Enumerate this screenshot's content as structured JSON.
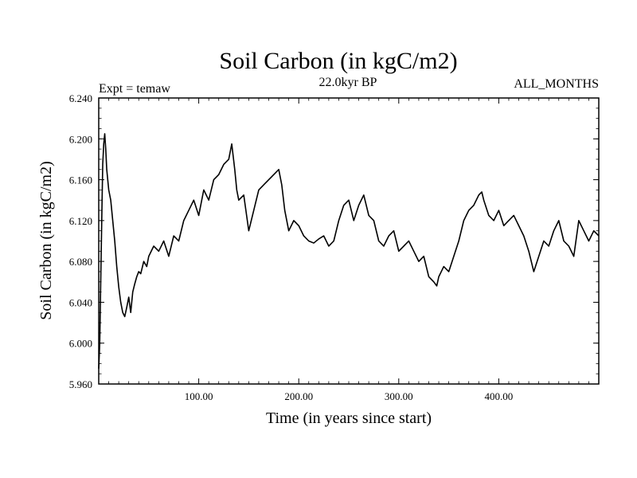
{
  "chart_data": {
    "type": "line",
    "title": "Soil Carbon (in kgC/m2)",
    "subtitle_left": "Expt = temaw",
    "subtitle_center": "22.0kyr BP",
    "subtitle_right": "ALL_MONTHS",
    "xlabel": "Time (in years since start)",
    "ylabel": "Soil Carbon (in kgC/m2)",
    "xlim": [
      0,
      500
    ],
    "ylim": [
      5.96,
      6.24
    ],
    "xticks": [
      100,
      200,
      300,
      400
    ],
    "xtick_labels": [
      "100.00",
      "200.00",
      "300.00",
      "400.00"
    ],
    "yticks": [
      5.96,
      6.0,
      6.04,
      6.08,
      6.12,
      6.16,
      6.2,
      6.24
    ],
    "ytick_labels": [
      "5.960",
      "6.000",
      "6.040",
      "6.080",
      "6.120",
      "6.160",
      "6.200",
      "6.240"
    ],
    "grid": false,
    "series": [
      {
        "name": "Soil Carbon",
        "color": "#000000",
        "x": [
          0,
          1,
          2,
          3,
          4,
          5,
          6,
          7,
          8,
          10,
          12,
          14,
          16,
          18,
          20,
          22,
          24,
          26,
          28,
          30,
          32,
          34,
          36,
          38,
          40,
          42,
          45,
          48,
          50,
          55,
          60,
          65,
          70,
          75,
          80,
          85,
          90,
          95,
          100,
          105,
          110,
          115,
          120,
          125,
          130,
          133,
          136,
          138,
          140,
          145,
          150,
          155,
          160,
          165,
          170,
          175,
          180,
          183,
          186,
          190,
          195,
          200,
          205,
          210,
          215,
          220,
          225,
          230,
          235,
          240,
          245,
          250,
          255,
          260,
          265,
          270,
          275,
          280,
          285,
          290,
          295,
          300,
          305,
          310,
          315,
          320,
          325,
          330,
          335,
          338,
          340,
          345,
          350,
          355,
          360,
          365,
          370,
          375,
          380,
          383,
          385,
          390,
          395,
          400,
          405,
          410,
          415,
          420,
          425,
          430,
          435,
          440,
          445,
          450,
          455,
          460,
          465,
          470,
          475,
          480,
          485,
          490,
          495,
          500
        ],
        "values": [
          5.975,
          6.0,
          6.06,
          6.12,
          6.175,
          6.195,
          6.205,
          6.19,
          6.17,
          6.15,
          6.14,
          6.12,
          6.1,
          6.075,
          6.055,
          6.04,
          6.03,
          6.026,
          6.035,
          6.045,
          6.03,
          6.05,
          6.058,
          6.065,
          6.07,
          6.068,
          6.08,
          6.075,
          6.085,
          6.095,
          6.09,
          6.1,
          6.085,
          6.105,
          6.1,
          6.12,
          6.13,
          6.14,
          6.125,
          6.15,
          6.14,
          6.16,
          6.165,
          6.175,
          6.18,
          6.195,
          6.17,
          6.15,
          6.14,
          6.145,
          6.11,
          6.13,
          6.15,
          6.155,
          6.16,
          6.165,
          6.17,
          6.155,
          6.13,
          6.11,
          6.12,
          6.115,
          6.105,
          6.1,
          6.098,
          6.102,
          6.105,
          6.095,
          6.1,
          6.12,
          6.135,
          6.14,
          6.12,
          6.135,
          6.145,
          6.125,
          6.12,
          6.1,
          6.095,
          6.105,
          6.11,
          6.09,
          6.095,
          6.1,
          6.09,
          6.08,
          6.085,
          6.065,
          6.06,
          6.056,
          6.065,
          6.075,
          6.07,
          6.085,
          6.1,
          6.12,
          6.13,
          6.135,
          6.145,
          6.148,
          6.14,
          6.125,
          6.12,
          6.13,
          6.115,
          6.12,
          6.125,
          6.115,
          6.105,
          6.09,
          6.07,
          6.085,
          6.1,
          6.095,
          6.11,
          6.12,
          6.1,
          6.095,
          6.085,
          6.12,
          6.11,
          6.1,
          6.11,
          6.105
        ]
      }
    ]
  }
}
